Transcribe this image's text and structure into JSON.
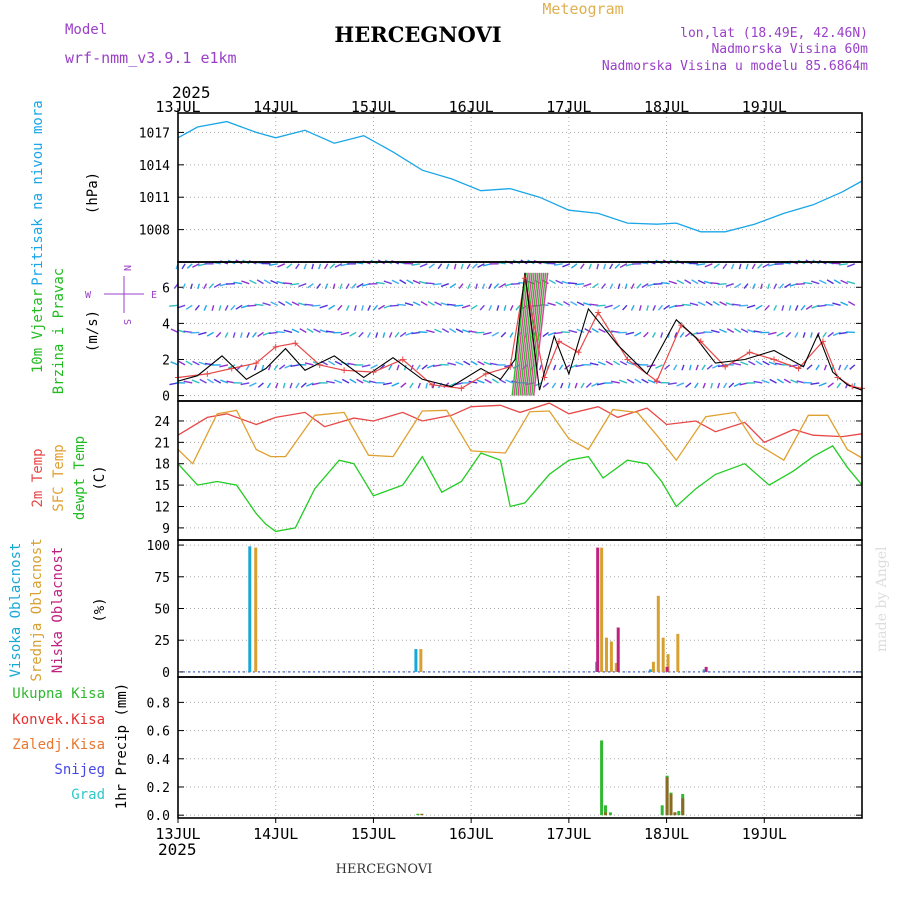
{
  "header": {
    "model_label": "Model",
    "model_name": "wrf-nmm_v3.9.1 e1km",
    "station": "HERCEGNOVI",
    "product": "Meteogram",
    "coords": "lon,lat (18.49E, 42.46N)",
    "elevation": "Nadmorska Visina 60m",
    "model_elevation": "Nadmorska Visina u modelu 85.6864m",
    "year_top": "2025",
    "year_bottom": "2025",
    "footer_station": "HERCEGNOVI",
    "credit": "made by Angel"
  },
  "colors": {
    "pressure": "#1aa6e8",
    "temp2m": "#e84848",
    "sfc_temp": "#e0a030",
    "dewpoint": "#22cc22",
    "high_cloud": "#18a8d8",
    "mid_cloud": "#d8a030",
    "low_cloud": "#c02080",
    "total_precip": "#30b830",
    "conv_precip": "#e83030",
    "frozen_precip": "#e87830",
    "snow": "#4848e8",
    "grad": "#30c8c8",
    "wind_side": "#9a40c8"
  },
  "chart_data": [
    {
      "type": "line",
      "panel": "pressure",
      "ylabel_lines": [
        "Pritisak na nivou mora",
        "(hPa)"
      ],
      "x_ticks": [
        "13JUL",
        "14JUL",
        "15JUL",
        "16JUL",
        "17JUL",
        "18JUL",
        "19JUL"
      ],
      "y_ticks": [
        1008,
        1011,
        1014,
        1017
      ],
      "ylim": [
        1005.0,
        1018.8
      ],
      "series": [
        {
          "x": [
            0,
            0.2,
            0.5,
            0.8,
            1.0,
            1.3,
            1.6,
            1.9,
            2.2,
            2.5,
            2.8,
            3.1,
            3.4,
            3.7,
            4.0,
            4.3,
            4.6,
            4.9,
            5.1,
            5.35,
            5.6,
            5.9,
            6.2,
            6.5,
            6.8,
            7.0
          ],
          "y": [
            1016.5,
            1017.5,
            1018.0,
            1017.0,
            1016.5,
            1017.2,
            1016.0,
            1016.7,
            1015.2,
            1013.5,
            1012.7,
            1011.6,
            1011.8,
            1011.0,
            1009.8,
            1009.5,
            1008.6,
            1008.5,
            1008.6,
            1007.8,
            1007.8,
            1008.5,
            1009.5,
            1010.3,
            1011.5,
            1012.5
          ]
        }
      ]
    },
    {
      "type": "line",
      "panel": "wind",
      "ylabel_lines": [
        "10m Vjetar",
        "Brzina i Pravac",
        "(m/s)"
      ],
      "compass": {
        "north": "N",
        "east": "E",
        "west": "W",
        "south": "S"
      },
      "y_ticks": [
        0,
        2,
        4,
        6
      ],
      "ylim": [
        -0.3,
        7.4
      ],
      "barb_levels": [
        0.7,
        1.7,
        3.5,
        5.0,
        6.2,
        7.3
      ],
      "series": [
        {
          "name": "speed",
          "x": [
            0,
            0.2,
            0.45,
            0.7,
            0.9,
            1.1,
            1.3,
            1.6,
            1.9,
            2.2,
            2.5,
            2.8,
            3.1,
            3.3,
            3.45,
            3.55,
            3.7,
            3.85,
            4.0,
            4.2,
            4.5,
            4.8,
            5.1,
            5.3,
            5.5,
            5.8,
            6.1,
            6.4,
            6.55,
            6.7,
            6.85,
            7.0
          ],
          "y": [
            0.8,
            1.1,
            2.2,
            0.9,
            1.5,
            2.6,
            1.4,
            2.2,
            1.0,
            2.1,
            0.9,
            0.5,
            1.5,
            0.9,
            2.0,
            6.8,
            0.3,
            3.3,
            1.2,
            4.8,
            2.8,
            1.2,
            4.2,
            3.2,
            1.8,
            2.0,
            2.5,
            1.6,
            3.4,
            1.3,
            0.6,
            0.3
          ]
        },
        {
          "name": "gust",
          "x": [
            0,
            0.3,
            0.55,
            0.8,
            1.0,
            1.2,
            1.45,
            1.7,
            2.0,
            2.3,
            2.6,
            2.9,
            3.15,
            3.4,
            3.55,
            3.75,
            3.9,
            4.1,
            4.3,
            4.6,
            4.9,
            5.15,
            5.35,
            5.6,
            5.85,
            6.1,
            6.35,
            6.6,
            6.75,
            6.9,
            7.0
          ],
          "y": [
            1.0,
            1.2,
            1.5,
            1.8,
            2.7,
            2.9,
            1.7,
            1.4,
            1.3,
            2.0,
            0.6,
            0.4,
            1.2,
            1.6,
            6.5,
            1.0,
            3.0,
            2.4,
            4.6,
            2.0,
            0.8,
            3.9,
            3.0,
            1.6,
            2.4,
            2.0,
            1.5,
            3.0,
            1.0,
            0.5,
            0.4
          ]
        }
      ]
    },
    {
      "type": "line",
      "panel": "temperature",
      "ylabel_lines": [
        "2m Temp",
        "SFC Temp",
        "dewpt Temp",
        "(C)"
      ],
      "y_ticks": [
        9,
        12,
        15,
        18,
        21,
        24
      ],
      "ylim": [
        7.3,
        26.8
      ],
      "series": [
        {
          "name": "2m Temp",
          "x": [
            0,
            0.3,
            0.5,
            0.8,
            1.0,
            1.3,
            1.5,
            1.8,
            2.0,
            2.3,
            2.5,
            2.8,
            3.0,
            3.3,
            3.5,
            3.8,
            4.0,
            4.3,
            4.5,
            4.8,
            5.0,
            5.3,
            5.5,
            5.8,
            6.0,
            6.3,
            6.5,
            6.8,
            7.0
          ],
          "y": [
            22.0,
            24.5,
            25.0,
            23.5,
            24.5,
            25.2,
            23.2,
            24.4,
            24.0,
            25.2,
            24.0,
            24.8,
            26.0,
            26.2,
            25.2,
            26.5,
            25.0,
            26.0,
            24.5,
            25.8,
            23.5,
            24.0,
            22.5,
            23.8,
            21.0,
            22.8,
            22.0,
            21.8,
            22.2
          ]
        },
        {
          "name": "SFC Temp",
          "x": [
            0,
            0.15,
            0.4,
            0.6,
            0.8,
            0.95,
            1.1,
            1.4,
            1.7,
            1.95,
            2.2,
            2.5,
            2.75,
            3.0,
            3.35,
            3.6,
            3.8,
            4.0,
            4.2,
            4.45,
            4.7,
            4.9,
            5.1,
            5.4,
            5.7,
            5.9,
            6.2,
            6.45,
            6.65,
            6.85,
            7.0
          ],
          "y": [
            20.0,
            18.0,
            25.0,
            25.5,
            20.0,
            19.0,
            19.0,
            24.8,
            25.2,
            19.2,
            19.0,
            25.4,
            25.5,
            19.8,
            19.5,
            25.3,
            25.4,
            21.5,
            20.0,
            25.6,
            25.2,
            22.0,
            18.5,
            24.6,
            25.2,
            21.0,
            18.5,
            24.8,
            24.8,
            20.0,
            18.8
          ]
        },
        {
          "name": "dewpt Temp",
          "x": [
            0,
            0.2,
            0.4,
            0.6,
            0.8,
            0.9,
            1.0,
            1.2,
            1.4,
            1.65,
            1.8,
            2.0,
            2.3,
            2.5,
            2.7,
            2.9,
            3.1,
            3.3,
            3.4,
            3.55,
            3.8,
            4.0,
            4.2,
            4.35,
            4.6,
            4.8,
            4.95,
            5.1,
            5.3,
            5.5,
            5.8,
            6.05,
            6.3,
            6.5,
            6.7,
            6.85,
            7.0
          ],
          "y": [
            18.0,
            15.0,
            15.5,
            15.0,
            11.0,
            9.5,
            8.5,
            9.0,
            14.5,
            18.5,
            18.0,
            13.5,
            15.0,
            19.0,
            14.0,
            15.5,
            19.5,
            18.5,
            12.0,
            12.5,
            16.5,
            18.5,
            19.0,
            16.0,
            18.5,
            18.0,
            15.5,
            12.0,
            14.5,
            16.5,
            18.0,
            15.0,
            17.0,
            19.0,
            20.5,
            17.5,
            15.0
          ]
        }
      ]
    },
    {
      "type": "bar",
      "panel": "cloud",
      "ylabel_lines": [
        "Visoka Oblacnost",
        "Srednja Oblacnost",
        "Niska Oblacnost",
        "(%)"
      ],
      "y_ticks": [
        0,
        25,
        50,
        75,
        100
      ],
      "ylim": [
        -4,
        104
      ],
      "series": [
        {
          "name": "Visoka Oblacnost",
          "x": [
            0.75,
            2.45,
            4.3,
            4.85,
            5.4
          ],
          "values": [
            99,
            18,
            8,
            2,
            2
          ]
        },
        {
          "name": "Srednja Oblacnost",
          "x": [
            0.78,
            2.47,
            4.32,
            4.37,
            4.42,
            4.47,
            4.85,
            4.9,
            4.95,
            5.0,
            5.1
          ],
          "values": [
            98,
            18,
            98,
            27,
            24,
            7,
            8,
            60,
            27,
            14,
            30
          ]
        },
        {
          "name": "Niska Oblacnost",
          "x": [
            4.29,
            4.5,
            5.0,
            5.4
          ],
          "values": [
            98,
            35,
            4,
            4
          ]
        }
      ]
    },
    {
      "type": "bar",
      "panel": "precip",
      "ylabel_lines": [
        "1hr Precip (mm)"
      ],
      "legend": [
        "Ukupna Kisa",
        "Konvek.Kisa",
        "Zaledj.Kisa",
        "Snijeg",
        "Grad"
      ],
      "y_ticks": [
        0.0,
        0.2,
        0.4,
        0.6,
        0.8
      ],
      "ylim": [
        -0.02,
        0.98
      ],
      "series": [
        {
          "name": "Ukupna Kisa",
          "x": [
            2.45,
            4.33,
            4.37,
            4.42,
            4.95,
            5.0,
            5.04,
            5.08,
            5.12,
            5.16
          ],
          "values": [
            0.01,
            0.53,
            0.07,
            0.02,
            0.07,
            0.28,
            0.16,
            0.02,
            0.03,
            0.15
          ]
        },
        {
          "name": "Zaledj.Kisa",
          "x": [
            2.47,
            4.35,
            4.98,
            5.02,
            5.06,
            5.14
          ],
          "values": [
            0.01,
            0.02,
            0.27,
            0.15,
            0.02,
            0.12
          ]
        }
      ]
    }
  ]
}
